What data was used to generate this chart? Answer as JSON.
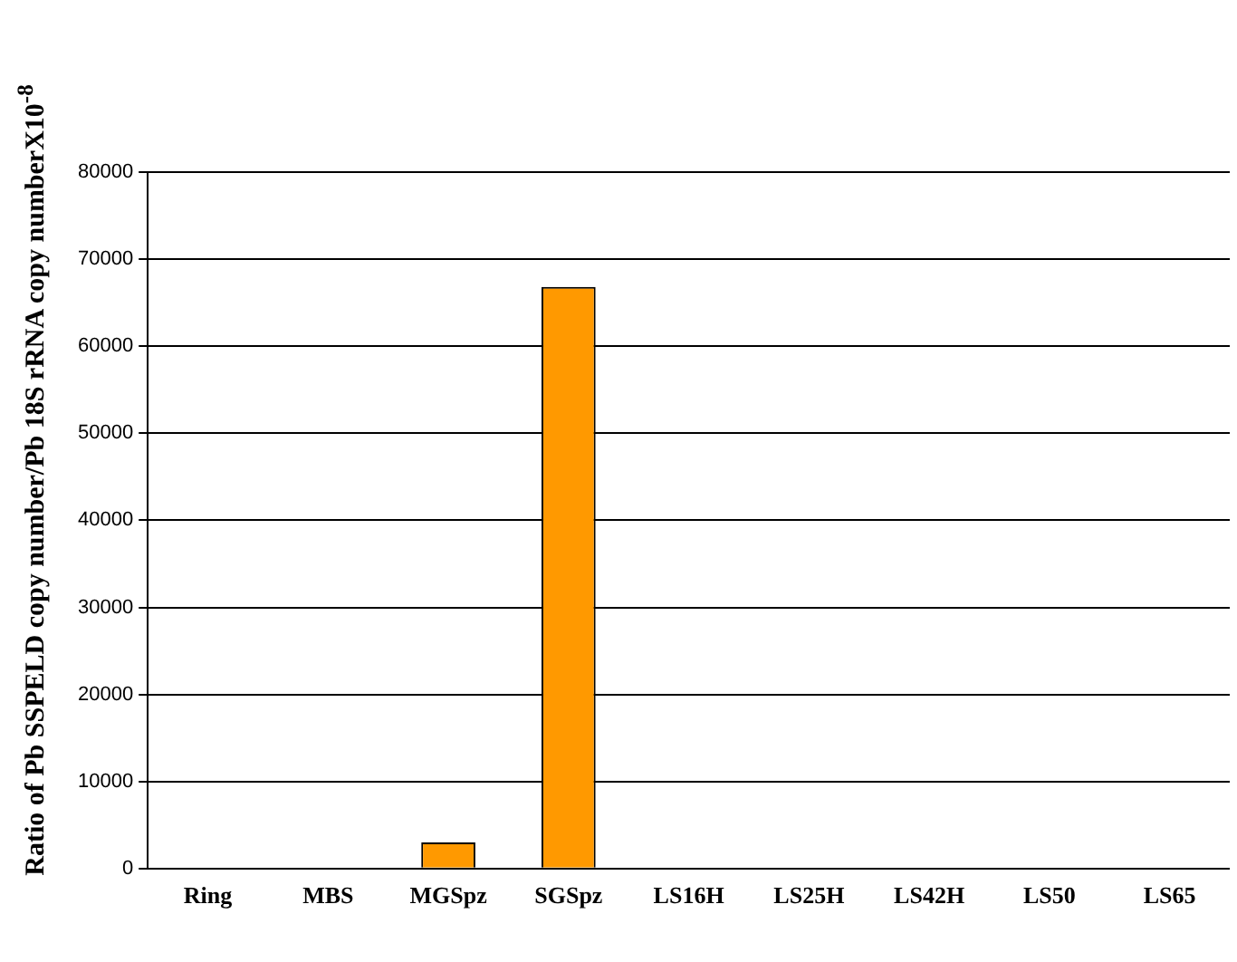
{
  "chart_data": {
    "type": "bar",
    "ylabel": "Ratio of Pb SSPELD copy number/Pb 18S rRNA copy numberX10$^{-8}$",
    "categories": [
      "Ring",
      "MBS",
      "MGSpz",
      "SGSpz",
      "LS16H",
      "LS25H",
      "LS42H",
      "LS50",
      "LS65"
    ],
    "values": [
      0,
      0,
      3000,
      66800,
      0,
      0,
      0,
      0,
      0
    ],
    "color": "#ff9900",
    "ylim": [
      0,
      80000
    ],
    "yticks": [
      0,
      10000,
      20000,
      30000,
      40000,
      50000,
      60000,
      70000,
      80000
    ],
    "grid": "y",
    "legend": false
  }
}
